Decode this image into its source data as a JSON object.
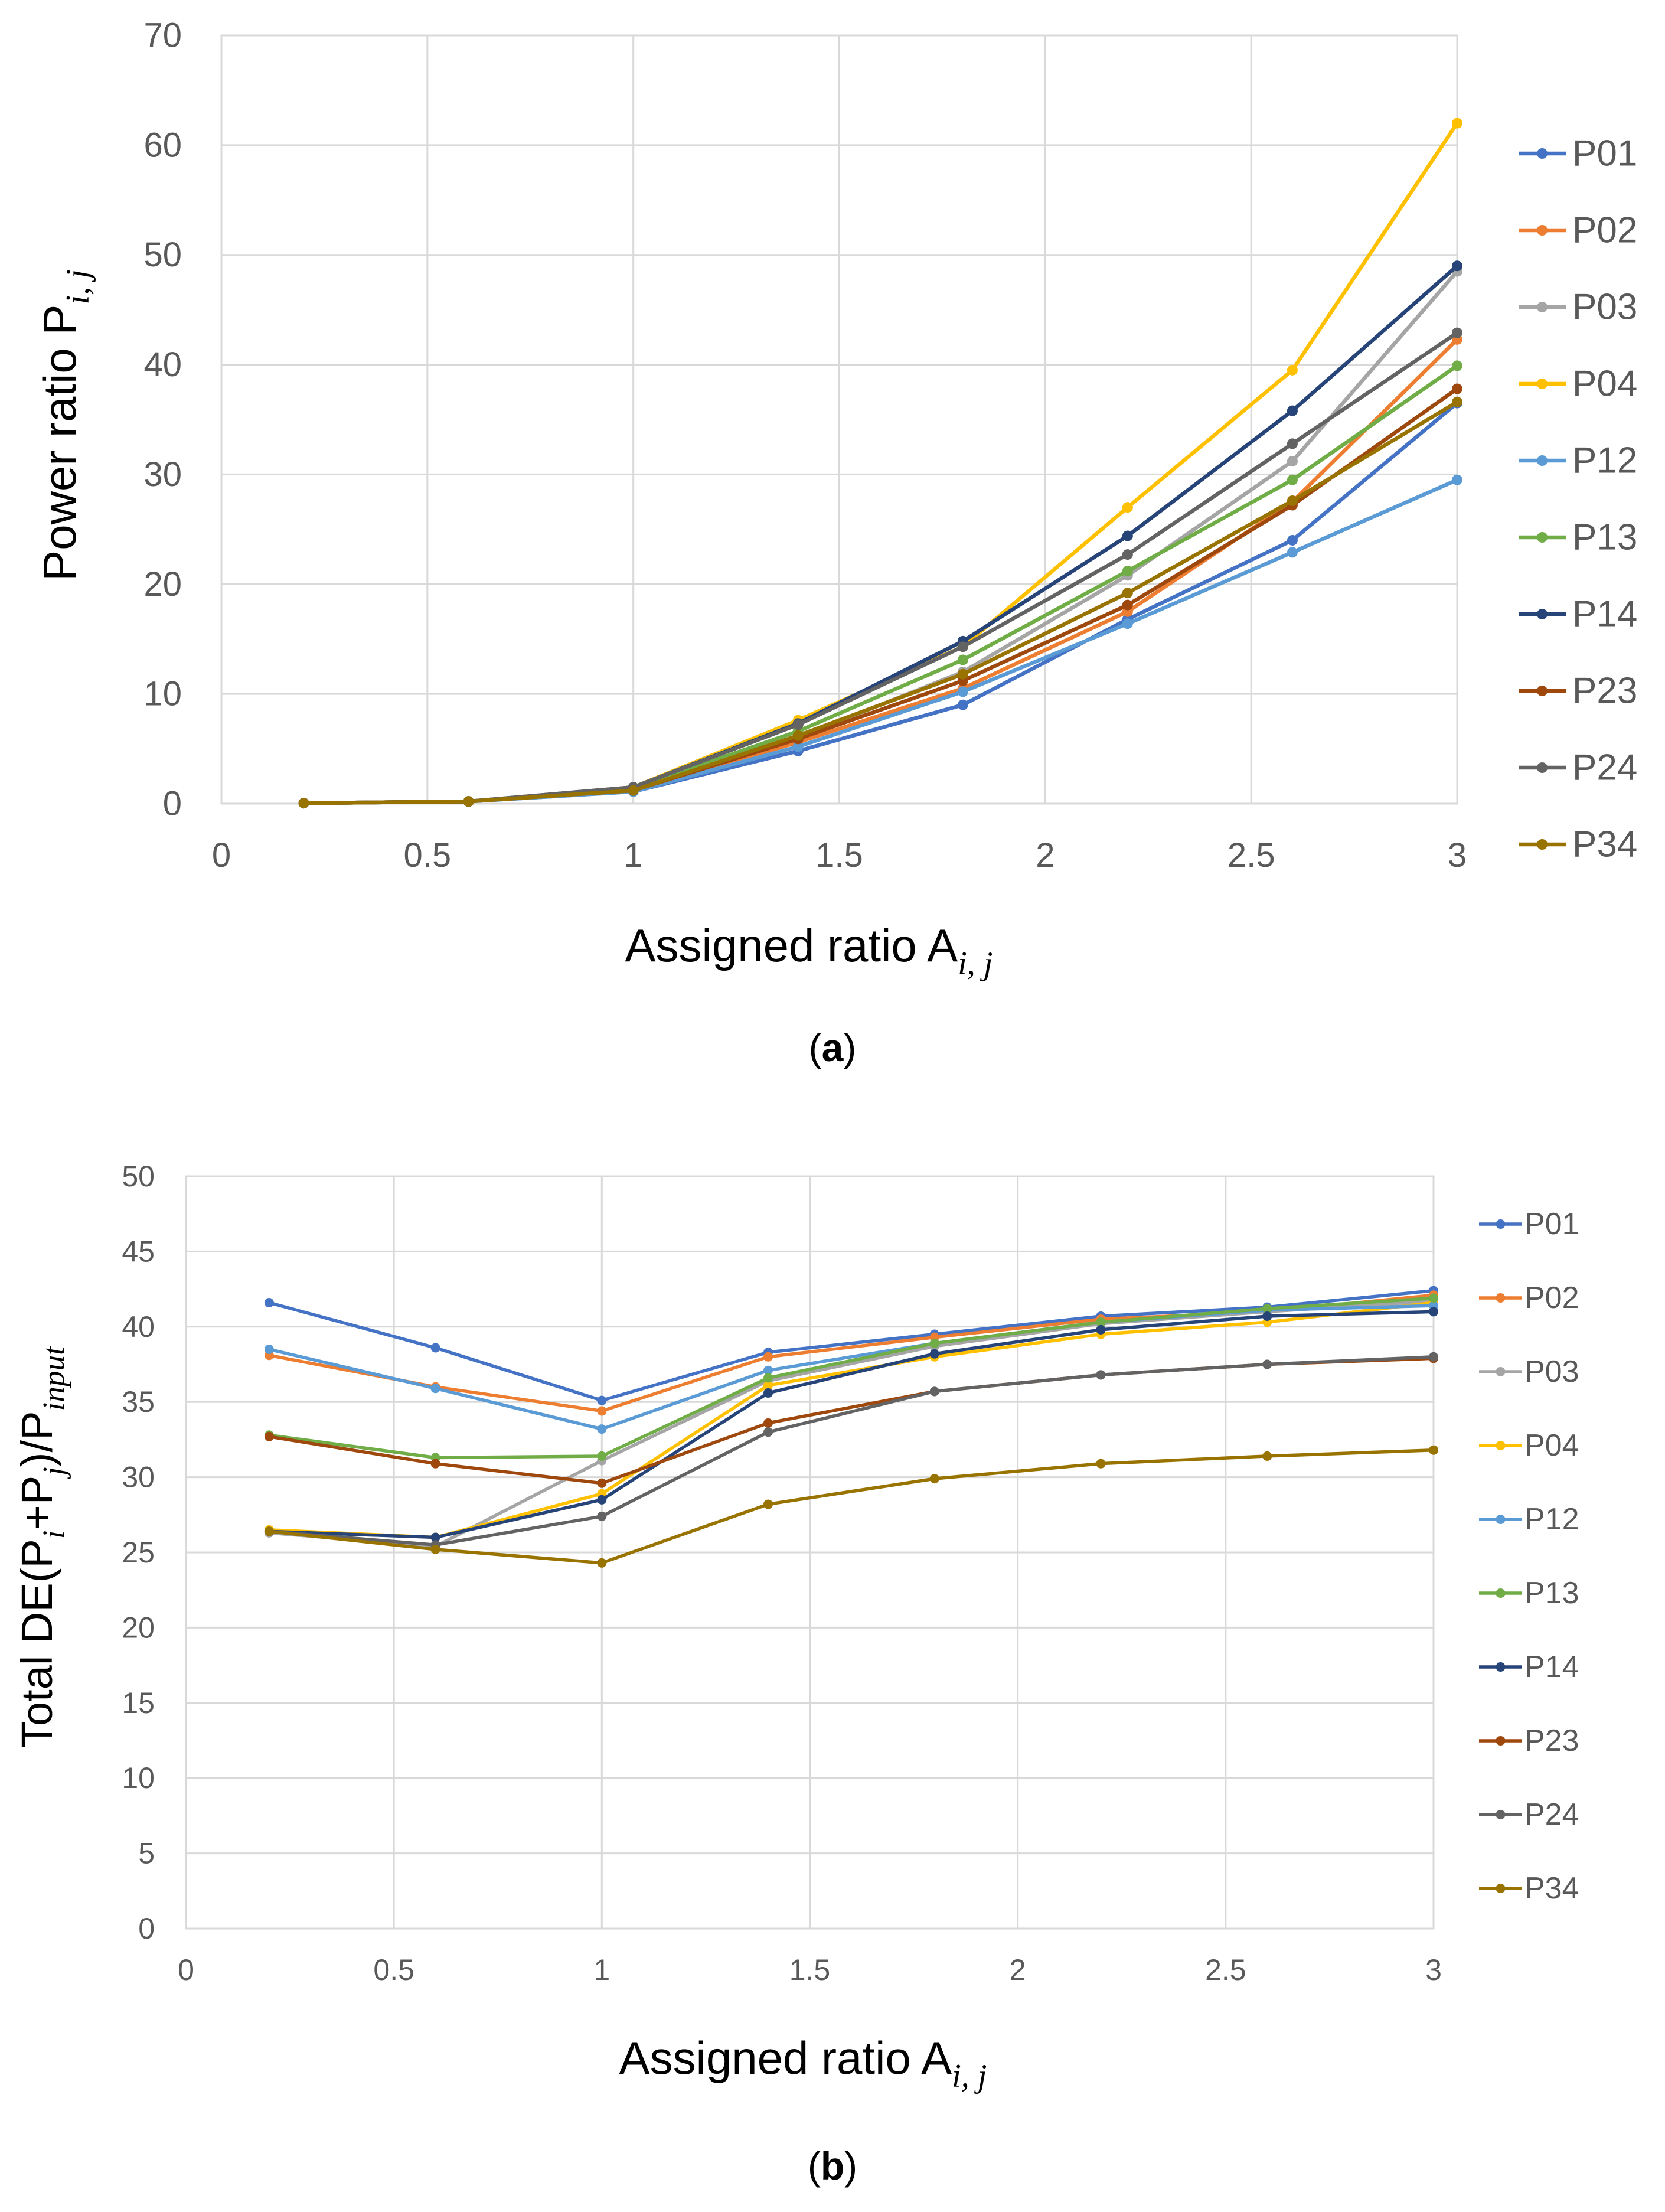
{
  "colors": {
    "P01": "#4472C4",
    "P02": "#ED7D31",
    "P03": "#A5A5A5",
    "P04": "#FFC000",
    "P12": "#5B9BD5",
    "P13": "#70AD47",
    "P14": "#264478",
    "P23": "#9E480E",
    "P24": "#636363",
    "P34": "#997300",
    "grid": "#D9D9D9",
    "text": "#595959"
  },
  "chart_data": [
    {
      "type": "line",
      "panel_label": "a",
      "title": "",
      "xlabel": "Assigned ratio A",
      "xlabel_subscript": "i, j",
      "ylabel": "Power ratio P",
      "ylabel_subscript": "i, j",
      "xlim": [
        0,
        3
      ],
      "ylim": [
        0,
        70
      ],
      "xticks": [
        0,
        0.5,
        1,
        1.5,
        2,
        2.5,
        3
      ],
      "yticks": [
        0,
        10,
        20,
        30,
        40,
        50,
        60,
        70
      ],
      "xtick_labels": [
        "0",
        "0.5",
        "1",
        "1.5",
        "2",
        "2.5",
        "3"
      ],
      "ytick_labels": [
        "0",
        "10",
        "20",
        "30",
        "40",
        "50",
        "60",
        "70"
      ],
      "grid": true,
      "legend_position": "right",
      "x": [
        0.2,
        0.6,
        1.0,
        1.4,
        1.8,
        2.2,
        2.6,
        3.0
      ],
      "series": [
        {
          "name": "P01",
          "values": [
            0.05,
            0.2,
            1.1,
            4.8,
            9.0,
            16.8,
            24.0,
            36.5
          ]
        },
        {
          "name": "P02",
          "values": [
            0.05,
            0.2,
            1.2,
            5.6,
            10.5,
            17.5,
            27.5,
            42.3
          ]
        },
        {
          "name": "P03",
          "values": [
            0.05,
            0.2,
            1.3,
            6.0,
            12.0,
            20.8,
            31.2,
            48.5
          ]
        },
        {
          "name": "P04",
          "values": [
            0.05,
            0.2,
            1.5,
            7.6,
            14.3,
            27.0,
            39.5,
            62.0
          ]
        },
        {
          "name": "P12",
          "values": [
            0.05,
            0.2,
            1.1,
            5.2,
            10.2,
            16.4,
            22.9,
            29.5
          ]
        },
        {
          "name": "P13",
          "values": [
            0.05,
            0.2,
            1.4,
            6.6,
            13.1,
            21.2,
            29.5,
            39.9
          ]
        },
        {
          "name": "P14",
          "values": [
            0.05,
            0.2,
            1.5,
            7.3,
            14.8,
            24.4,
            35.8,
            49.0
          ]
        },
        {
          "name": "P23",
          "values": [
            0.05,
            0.2,
            1.2,
            5.9,
            11.2,
            18.1,
            27.2,
            37.8
          ]
        },
        {
          "name": "P24",
          "values": [
            0.05,
            0.2,
            1.5,
            7.2,
            14.3,
            22.7,
            32.8,
            42.9
          ]
        },
        {
          "name": "P34",
          "values": [
            0.05,
            0.2,
            1.2,
            6.2,
            11.8,
            19.2,
            27.6,
            36.6
          ]
        }
      ]
    },
    {
      "type": "line",
      "panel_label": "b",
      "title": "",
      "xlabel": "Assigned ratio A",
      "xlabel_subscript": "i, j",
      "ylabel": "Total DE(P",
      "ylabel_parts": [
        "Total DE(P",
        "i",
        "+P",
        "j",
        ")/P",
        "input"
      ],
      "xlim": [
        0,
        3
      ],
      "ylim": [
        0,
        50
      ],
      "xticks": [
        0,
        0.5,
        1,
        1.5,
        2,
        2.5,
        3
      ],
      "yticks": [
        0,
        5,
        10,
        15,
        20,
        25,
        30,
        35,
        40,
        45,
        50
      ],
      "xtick_labels": [
        "0",
        "0.5",
        "1",
        "1.5",
        "2",
        "2.5",
        "3"
      ],
      "ytick_labels": [
        "0",
        "5",
        "10",
        "15",
        "20",
        "25",
        "30",
        "35",
        "40",
        "45",
        "50"
      ],
      "grid": true,
      "legend_position": "right",
      "x": [
        0.2,
        0.6,
        1.0,
        1.4,
        1.8,
        2.2,
        2.6,
        3.0
      ],
      "series": [
        {
          "name": "P01",
          "values": [
            41.6,
            38.6,
            35.1,
            38.3,
            39.5,
            40.7,
            41.3,
            42.4
          ]
        },
        {
          "name": "P02",
          "values": [
            38.1,
            36.0,
            34.4,
            38.0,
            39.3,
            40.5,
            41.0,
            42.1
          ]
        },
        {
          "name": "P03",
          "values": [
            26.3,
            25.4,
            31.1,
            36.4,
            38.7,
            40.2,
            41.0,
            41.7
          ]
        },
        {
          "name": "P04",
          "values": [
            26.5,
            26.0,
            28.9,
            36.1,
            38.0,
            39.5,
            40.3,
            41.6
          ]
        },
        {
          "name": "P12",
          "values": [
            38.5,
            35.9,
            33.2,
            37.1,
            38.9,
            40.3,
            41.1,
            41.4
          ]
        },
        {
          "name": "P13",
          "values": [
            32.8,
            31.3,
            31.4,
            36.6,
            38.9,
            40.3,
            41.2,
            41.9
          ]
        },
        {
          "name": "P14",
          "values": [
            26.4,
            26.0,
            28.5,
            35.6,
            38.2,
            39.8,
            40.7,
            41.0
          ]
        },
        {
          "name": "P23",
          "values": [
            32.7,
            30.9,
            29.6,
            33.6,
            35.7,
            36.8,
            37.5,
            37.9
          ]
        },
        {
          "name": "P24",
          "values": [
            26.4,
            25.5,
            27.4,
            33.0,
            35.7,
            36.8,
            37.5,
            38.0
          ]
        },
        {
          "name": "P34",
          "values": [
            26.4,
            25.2,
            24.3,
            28.2,
            29.9,
            30.9,
            31.4,
            31.8
          ]
        }
      ]
    }
  ]
}
